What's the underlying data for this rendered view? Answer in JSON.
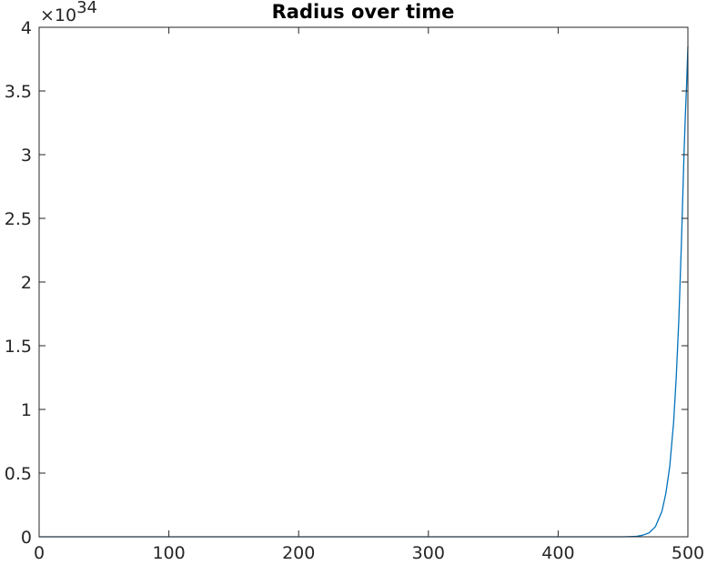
{
  "chart_data": {
    "type": "line",
    "title": "Radius over time",
    "xlabel": "",
    "ylabel": "",
    "xlim": [
      0,
      500
    ],
    "ylim": [
      0,
      4e+34
    ],
    "y_exponent_label": "×10",
    "y_exponent": "34",
    "x_ticks": [
      0,
      100,
      200,
      300,
      400,
      500
    ],
    "x_tick_labels": [
      "0",
      "100",
      "200",
      "300",
      "400",
      "500"
    ],
    "y_ticks": [
      0,
      0.5,
      1,
      1.5,
      2,
      2.5,
      3,
      3.5,
      4
    ],
    "y_tick_labels": [
      "0",
      "0.5",
      "1",
      "1.5",
      "2",
      "2.5",
      "3",
      "3.5",
      "4"
    ],
    "grid": false,
    "series": [
      {
        "color": "#0072BD",
        "x": [
          0,
          100,
          200,
          300,
          400,
          450,
          460,
          465,
          470,
          475,
          480,
          483,
          486,
          489,
          491,
          493,
          495,
          496,
          497,
          498,
          499,
          500
        ],
        "y": [
          0,
          0,
          0,
          0,
          0,
          0,
          0.003,
          0.012,
          0.03,
          0.08,
          0.2,
          0.34,
          0.55,
          0.9,
          1.25,
          1.7,
          2.3,
          2.65,
          3.0,
          3.3,
          3.55,
          3.85
        ]
      }
    ]
  }
}
